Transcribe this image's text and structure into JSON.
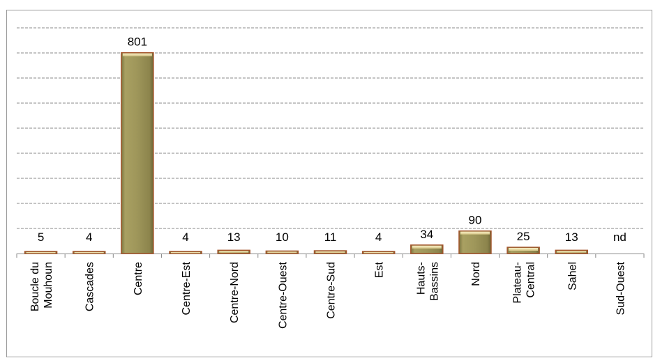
{
  "chart_data": {
    "type": "bar",
    "title": "",
    "xlabel": "",
    "ylabel": "",
    "categories": [
      [
        "Boucle du",
        "Mouhoun"
      ],
      [
        "Cascades"
      ],
      [
        "Centre"
      ],
      [
        "Centre-Est"
      ],
      [
        "Centre-Nord"
      ],
      [
        "Centre-Ouest"
      ],
      [
        "Centre-Sud"
      ],
      [
        "Est"
      ],
      [
        "Hauts-",
        "Bassins"
      ],
      [
        "Nord"
      ],
      [
        "Plateau-",
        "Central"
      ],
      [
        "Sahel"
      ],
      [
        "Sud-Ouest"
      ]
    ],
    "values": [
      5,
      4,
      801,
      4,
      13,
      10,
      11,
      4,
      34,
      90,
      25,
      13,
      null
    ],
    "data_labels": [
      "5",
      "4",
      "801",
      "4",
      "13",
      "10",
      "11",
      "4",
      "34",
      "90",
      "25",
      "13",
      "nd"
    ],
    "ylim": [
      0,
      900
    ],
    "y_gridline_step": 100,
    "grid": true,
    "grid_style": "dashed",
    "legend": false,
    "y_axis_labels_shown": false,
    "colors": {
      "bar_fill": "#9c9456",
      "bar_highlight": "#f3e7b6",
      "bar_edge": "#a4552b",
      "grid": "#8a8a8a",
      "axis": "#8a8a8a"
    }
  }
}
